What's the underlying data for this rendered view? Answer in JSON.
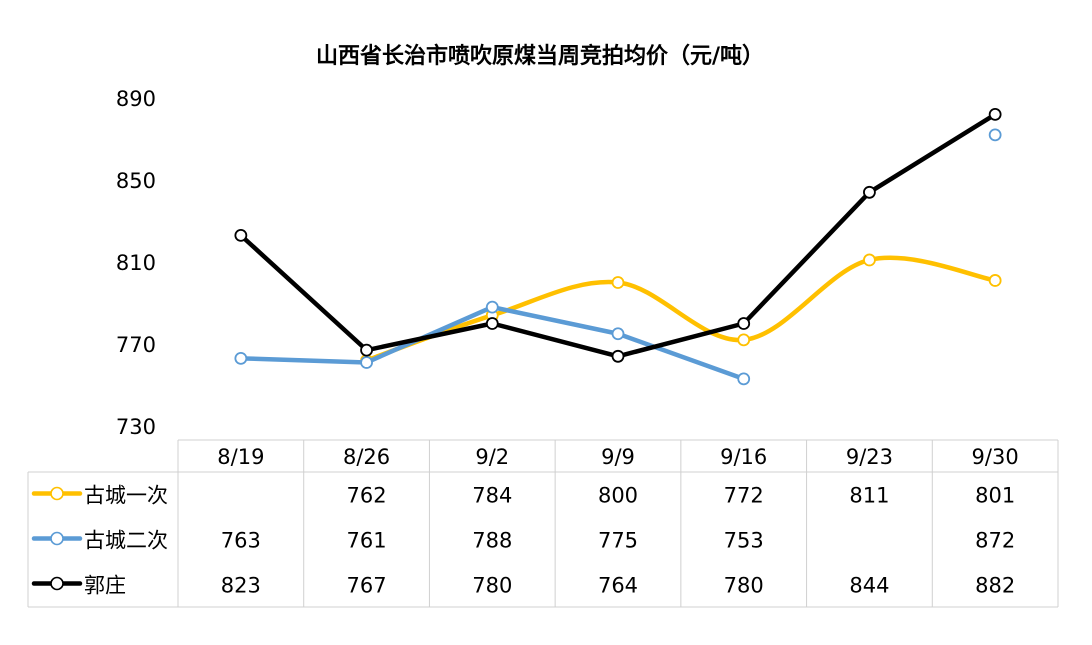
{
  "chart_data": {
    "type": "line",
    "title": "山西省长治市喷吹原煤当周竞拍均价（元/吨）",
    "categories": [
      "8/19",
      "8/26",
      "9/2",
      "9/9",
      "9/16",
      "9/23",
      "9/30"
    ],
    "yticks": [
      "890",
      "850",
      "810",
      "770",
      "730"
    ],
    "ylim": [
      730,
      890
    ],
    "grid": false,
    "legend_placement": "data-table",
    "series": [
      {
        "name": "古城一次",
        "color": "#FFC000",
        "smooth": true,
        "values": [
          null,
          762,
          784,
          800,
          772,
          811,
          801
        ],
        "labels": [
          "",
          "762",
          "784",
          "800",
          "772",
          "811",
          "801"
        ]
      },
      {
        "name": "古城二次",
        "color": "#5B9BD5",
        "smooth": false,
        "values": [
          763,
          761,
          788,
          775,
          753,
          null,
          872
        ],
        "labels": [
          "763",
          "761",
          "788",
          "775",
          "753",
          "",
          "872"
        ]
      },
      {
        "name": "郭庄",
        "color": "#000000",
        "smooth": false,
        "values": [
          823,
          767,
          780,
          764,
          780,
          844,
          882
        ],
        "labels": [
          "823",
          "767",
          "780",
          "764",
          "780",
          "844",
          "882"
        ]
      }
    ]
  }
}
